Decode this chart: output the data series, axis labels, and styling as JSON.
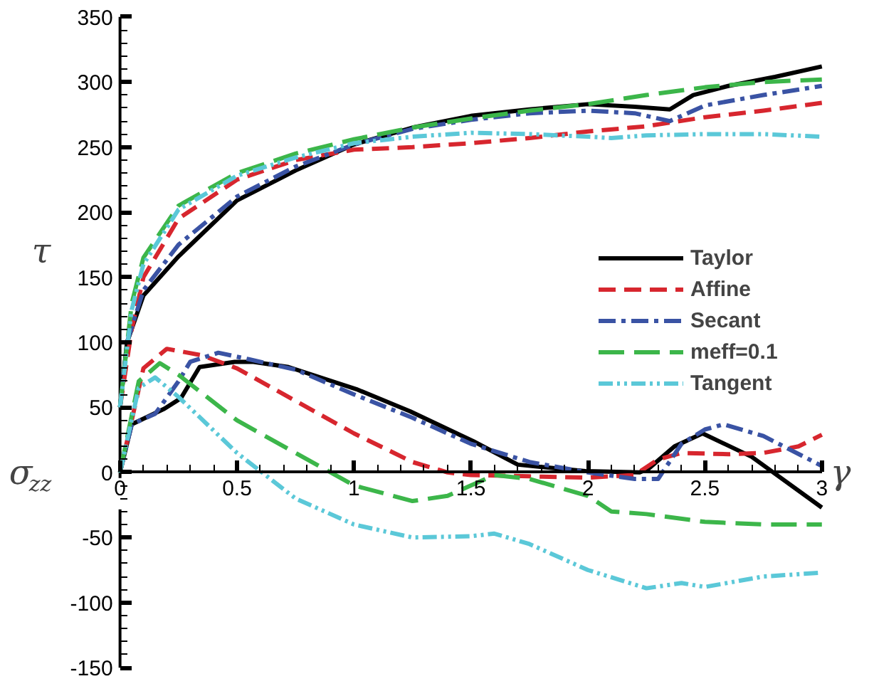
{
  "chart_data": {
    "type": "line",
    "xlabel": "γ",
    "ylabel": "τ",
    "annotations": [
      "σ$_{zz}$"
    ],
    "xlim": [
      0,
      3
    ],
    "ylim": [
      -150,
      350
    ],
    "xticks": [
      0,
      0.5,
      1,
      1.5,
      2,
      2.5,
      3
    ],
    "yticks": [
      -150,
      -100,
      -50,
      0,
      50,
      100,
      150,
      200,
      250,
      300,
      350
    ],
    "grid": false,
    "legend": "right",
    "series": [
      {
        "name": "Taylor",
        "color": "#000000",
        "line_style": "solid",
        "x": [
          0,
          0.03,
          0.1,
          0.25,
          0.5,
          0.75,
          1,
          1.25,
          1.5,
          1.75,
          2,
          2.2,
          2.35,
          2.45,
          2.6,
          2.8,
          3
        ],
        "values": [
          50,
          100,
          136,
          166,
          209,
          232,
          252,
          265,
          274,
          279,
          283,
          281,
          279,
          290,
          297,
          304,
          312
        ]
      },
      {
        "name": "Affine",
        "color": "#d7262e",
        "line_style": "dashed",
        "x": [
          0,
          0.05,
          0.1,
          0.25,
          0.5,
          0.75,
          1,
          1.25,
          1.5,
          1.75,
          2,
          2.25,
          2.5,
          2.75,
          3
        ],
        "values": [
          50,
          110,
          150,
          195,
          225,
          240,
          248,
          250,
          253,
          257,
          262,
          266,
          273,
          278,
          284
        ]
      },
      {
        "name": "Secant",
        "color": "#3a53a4",
        "line_style": "dashdot",
        "x": [
          0,
          0.03,
          0.1,
          0.25,
          0.5,
          0.75,
          1,
          1.25,
          1.5,
          1.75,
          2,
          2.2,
          2.35,
          2.5,
          2.75,
          3
        ],
        "values": [
          50,
          100,
          140,
          175,
          212,
          235,
          252,
          264,
          271,
          276,
          278,
          276,
          270,
          282,
          290,
          297
        ]
      },
      {
        "name": "meff=0.1",
        "color": "#3cb64a",
        "line_style": "longdash",
        "x": [
          0,
          0.05,
          0.1,
          0.25,
          0.5,
          0.75,
          1,
          1.25,
          1.5,
          1.75,
          2,
          2.25,
          2.5,
          2.75,
          3
        ],
        "values": [
          50,
          130,
          165,
          205,
          230,
          245,
          256,
          265,
          272,
          278,
          283,
          290,
          296,
          300,
          302
        ]
      },
      {
        "name": "Tangent",
        "color": "#5bc8d8",
        "line_style": "dashdotdot",
        "x": [
          0,
          0.05,
          0.1,
          0.25,
          0.5,
          0.75,
          1,
          1.25,
          1.5,
          1.75,
          2,
          2.1,
          2.25,
          2.5,
          2.75,
          3
        ],
        "values": [
          50,
          125,
          160,
          202,
          228,
          242,
          253,
          258,
          261,
          260,
          258,
          257,
          259,
          260,
          260,
          258
        ]
      },
      {
        "color": "#000000",
        "line_style": "solid",
        "x": [
          0,
          0.05,
          0.19,
          0.26,
          0.34,
          0.49,
          0.57,
          0.72,
          1.01,
          1.24,
          1.51,
          1.7,
          1.99,
          2.22,
          2.26,
          2.37,
          2.49,
          2.7,
          3
        ],
        "values": [
          0,
          37,
          49,
          57,
          81,
          85,
          85,
          81,
          64,
          47,
          24,
          6,
          1,
          0,
          3,
          20,
          30,
          12,
          -27
        ]
      },
      {
        "color": "#d7262e",
        "line_style": "dashed",
        "x": [
          0,
          0.1,
          0.2,
          0.35,
          0.5,
          0.75,
          1,
          1.25,
          1.4,
          1.5,
          1.75,
          2,
          2.2,
          2.3,
          2.4,
          2.6,
          2.75,
          2.9,
          3
        ],
        "values": [
          0,
          80,
          95,
          90,
          80,
          55,
          30,
          8,
          0,
          -2,
          -3,
          -4,
          -2,
          10,
          15,
          14,
          15,
          20,
          29
        ]
      },
      {
        "color": "#3a53a4",
        "line_style": "dashdot",
        "x": [
          0,
          0.05,
          0.15,
          0.25,
          0.3,
          0.42,
          0.55,
          0.75,
          1,
          1.25,
          1.5,
          1.75,
          2,
          2.2,
          2.3,
          2.4,
          2.5,
          2.58,
          2.75,
          3
        ],
        "values": [
          0,
          37,
          45,
          70,
          85,
          92,
          87,
          79,
          60,
          42,
          22,
          8,
          0,
          -5,
          -5,
          22,
          33,
          37,
          28,
          5
        ]
      },
      {
        "color": "#3cb64a",
        "line_style": "longdash",
        "x": [
          0,
          0.08,
          0.17,
          0.25,
          0.5,
          0.75,
          1,
          1.25,
          1.4,
          1.6,
          1.75,
          2,
          2.1,
          2.25,
          2.5,
          2.75,
          3
        ],
        "values": [
          0,
          70,
          84,
          75,
          40,
          15,
          -10,
          -22,
          -18,
          -2,
          -5,
          -18,
          -30,
          -32,
          -38,
          -40,
          -40
        ]
      },
      {
        "color": "#5bc8d8",
        "line_style": "dashdotdot",
        "x": [
          0,
          0.08,
          0.15,
          0.25,
          0.5,
          0.75,
          1,
          1.25,
          1.5,
          1.6,
          1.75,
          2,
          2.25,
          2.4,
          2.5,
          2.75,
          3
        ],
        "values": [
          0,
          65,
          73,
          58,
          15,
          -20,
          -40,
          -50,
          -49,
          -47,
          -55,
          -75,
          -89,
          -85,
          -88,
          -80,
          -77
        ]
      }
    ]
  }
}
